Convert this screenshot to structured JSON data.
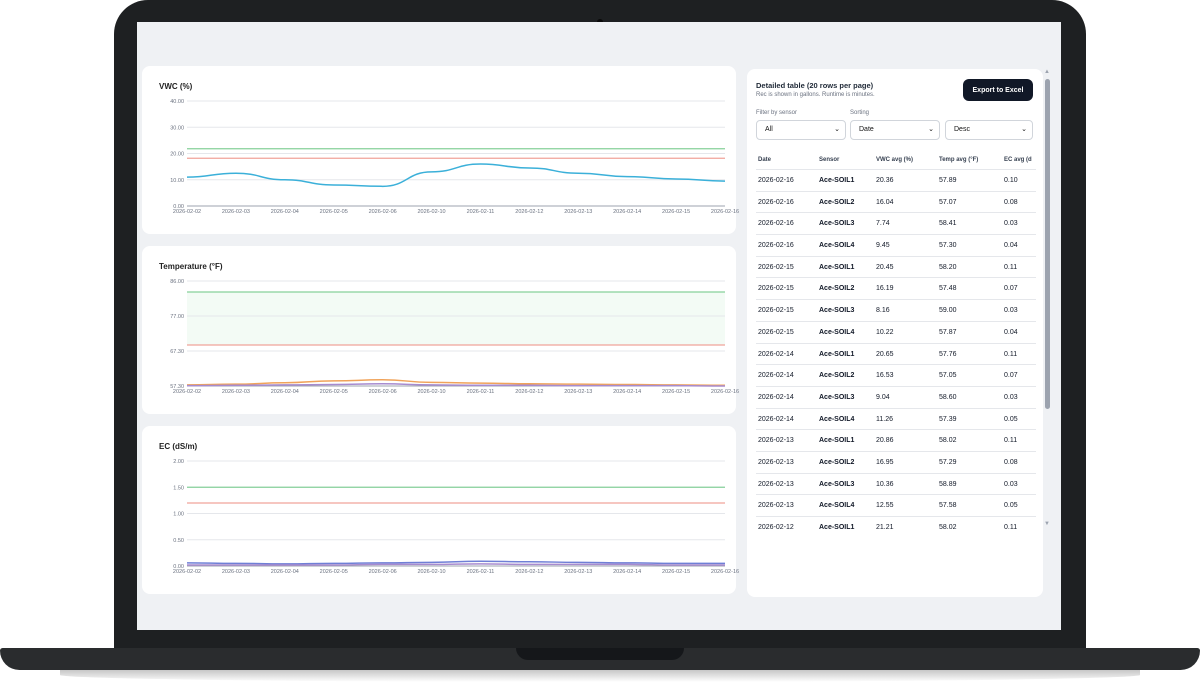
{
  "charts": [
    {
      "title": "VWC (%)",
      "card_top": 44,
      "card_height": 168,
      "y_ticks": [
        "40.00",
        "30.00",
        "20.00",
        "10.00",
        "0.00"
      ],
      "ylim": [
        0,
        40
      ],
      "x_labels": [
        "2026-02-02",
        "2026-02-03",
        "2026-02-04",
        "2026-02-05",
        "2026-02-06",
        "2026-02-10",
        "2026-02-11",
        "2026-02-12",
        "2026-02-13",
        "2026-02-14",
        "2026-02-15",
        "2026-02-16"
      ],
      "thresholds": [
        {
          "value": 21.8,
          "color": "#86d19a"
        },
        {
          "value": 18.2,
          "color": "#f0a39a"
        }
      ],
      "band": null,
      "series": [
        {
          "color": "#3bb0d9",
          "values": [
            11.0,
            12.5,
            10.0,
            8.0,
            7.5,
            13.0,
            16.0,
            14.5,
            12.5,
            11.2,
            10.3,
            9.5
          ]
        }
      ]
    },
    {
      "title": "Temperature (°F)",
      "card_top": 224,
      "card_height": 168,
      "y_ticks": [
        "86.00",
        "77.00",
        "67.30",
        "57.30"
      ],
      "ylim": [
        57.3,
        86.0
      ],
      "x_labels": [
        "2026-02-02",
        "2026-02-03",
        "2026-02-04",
        "2026-02-05",
        "2026-02-06",
        "2026-02-10",
        "2026-02-11",
        "2026-02-12",
        "2026-02-13",
        "2026-02-14",
        "2026-02-15",
        "2026-02-16"
      ],
      "thresholds": [
        {
          "value": 83.0,
          "color": "#86d19a"
        },
        {
          "value": 68.5,
          "color": "#f0a39a"
        }
      ],
      "band": {
        "from": 68.5,
        "to": 83.0,
        "color": "#f3fbf5"
      },
      "series": [
        {
          "color": "#f0a35a",
          "values": [
            57.6,
            57.8,
            58.2,
            58.7,
            59.0,
            58.3,
            58.1,
            57.9,
            57.8,
            57.7,
            57.6,
            57.5
          ]
        },
        {
          "color": "#a78bcf",
          "values": [
            57.4,
            57.5,
            57.6,
            57.7,
            57.9,
            57.6,
            57.5,
            57.5,
            57.4,
            57.4,
            57.4,
            57.3
          ]
        }
      ]
    },
    {
      "title": "EC (dS/m)",
      "card_top": 404,
      "card_height": 168,
      "y_ticks": [
        "2.00",
        "1.50",
        "1.00",
        "0.50",
        "0.00"
      ],
      "ylim": [
        0,
        2
      ],
      "x_labels": [
        "2026-02-02",
        "2026-02-03",
        "2026-02-04",
        "2026-02-05",
        "2026-02-06",
        "2026-02-10",
        "2026-02-11",
        "2026-02-12",
        "2026-02-13",
        "2026-02-14",
        "2026-02-15",
        "2026-02-16"
      ],
      "thresholds": [
        {
          "value": 1.5,
          "color": "#86d19a"
        },
        {
          "value": 1.2,
          "color": "#f0a39a"
        }
      ],
      "band": null,
      "series": [
        {
          "color": "#6f7fd6",
          "values": [
            0.06,
            0.05,
            0.04,
            0.05,
            0.06,
            0.07,
            0.09,
            0.08,
            0.07,
            0.06,
            0.05,
            0.05
          ]
        },
        {
          "color": "#a78bcf",
          "values": [
            0.02,
            0.02,
            0.02,
            0.02,
            0.03,
            0.03,
            0.04,
            0.03,
            0.03,
            0.03,
            0.02,
            0.02
          ]
        }
      ]
    }
  ],
  "table": {
    "title": "Detailed table (20 rows per page)",
    "subtitle": "Rec is shown in gallons. Runtime is minutes.",
    "export_label": "Export to Excel",
    "filter_label": "Filter by sensor",
    "sorting_label": "Sorting",
    "filter_value": "All",
    "sort_field": "Date",
    "sort_order": "Desc",
    "columns": [
      "Date",
      "Sensor",
      "VWC avg (%)",
      "Temp avg (°F)",
      "EC avg (d"
    ],
    "rows": [
      [
        "2026-02-16",
        "Ace-SOIL1",
        "20.36",
        "57.89",
        "0.10"
      ],
      [
        "2026-02-16",
        "Ace-SOIL2",
        "16.04",
        "57.07",
        "0.08"
      ],
      [
        "2026-02-16",
        "Ace-SOIL3",
        "7.74",
        "58.41",
        "0.03"
      ],
      [
        "2026-02-16",
        "Ace-SOIL4",
        "9.45",
        "57.30",
        "0.04"
      ],
      [
        "2026-02-15",
        "Ace-SOIL1",
        "20.45",
        "58.20",
        "0.11"
      ],
      [
        "2026-02-15",
        "Ace-SOIL2",
        "16.19",
        "57.48",
        "0.07"
      ],
      [
        "2026-02-15",
        "Ace-SOIL3",
        "8.16",
        "59.00",
        "0.03"
      ],
      [
        "2026-02-15",
        "Ace-SOIL4",
        "10.22",
        "57.87",
        "0.04"
      ],
      [
        "2026-02-14",
        "Ace-SOIL1",
        "20.65",
        "57.76",
        "0.11"
      ],
      [
        "2026-02-14",
        "Ace-SOIL2",
        "16.53",
        "57.05",
        "0.07"
      ],
      [
        "2026-02-14",
        "Ace-SOIL3",
        "9.04",
        "58.60",
        "0.03"
      ],
      [
        "2026-02-14",
        "Ace-SOIL4",
        "11.26",
        "57.39",
        "0.05"
      ],
      [
        "2026-02-13",
        "Ace-SOIL1",
        "20.86",
        "58.02",
        "0.11"
      ],
      [
        "2026-02-13",
        "Ace-SOIL2",
        "16.95",
        "57.29",
        "0.08"
      ],
      [
        "2026-02-13",
        "Ace-SOIL3",
        "10.36",
        "58.89",
        "0.03"
      ],
      [
        "2026-02-13",
        "Ace-SOIL4",
        "12.55",
        "57.58",
        "0.05"
      ],
      [
        "2026-02-12",
        "Ace-SOIL1",
        "21.21",
        "58.02",
        "0.11"
      ]
    ]
  }
}
